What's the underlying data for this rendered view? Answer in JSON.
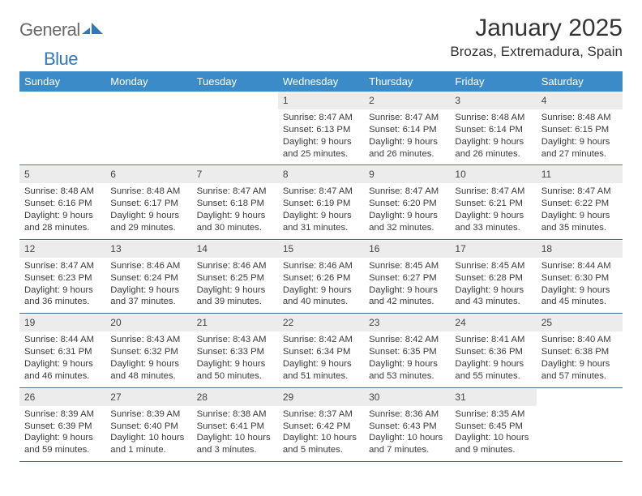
{
  "brand": {
    "part1": "General",
    "part2": "Blue"
  },
  "title": "January 2025",
  "location": "Brozas, Extremadura, Spain",
  "colors": {
    "header_bg": "#3b8bc9",
    "header_text": "#ffffff",
    "daynum_bg": "#ececec",
    "border": "#4a6a85",
    "text": "#3a3a3a"
  },
  "fonts": {
    "title_size": 30,
    "location_size": 17,
    "header_size": 13,
    "cell_size": 11
  },
  "day_labels": [
    "Sunday",
    "Monday",
    "Tuesday",
    "Wednesday",
    "Thursday",
    "Friday",
    "Saturday"
  ],
  "weeks": [
    [
      null,
      null,
      null,
      {
        "n": "1",
        "sr": "Sunrise: 8:47 AM",
        "ss": "Sunset: 6:13 PM",
        "d1": "Daylight: 9 hours",
        "d2": "and 25 minutes."
      },
      {
        "n": "2",
        "sr": "Sunrise: 8:47 AM",
        "ss": "Sunset: 6:14 PM",
        "d1": "Daylight: 9 hours",
        "d2": "and 26 minutes."
      },
      {
        "n": "3",
        "sr": "Sunrise: 8:48 AM",
        "ss": "Sunset: 6:14 PM",
        "d1": "Daylight: 9 hours",
        "d2": "and 26 minutes."
      },
      {
        "n": "4",
        "sr": "Sunrise: 8:48 AM",
        "ss": "Sunset: 6:15 PM",
        "d1": "Daylight: 9 hours",
        "d2": "and 27 minutes."
      }
    ],
    [
      {
        "n": "5",
        "sr": "Sunrise: 8:48 AM",
        "ss": "Sunset: 6:16 PM",
        "d1": "Daylight: 9 hours",
        "d2": "and 28 minutes."
      },
      {
        "n": "6",
        "sr": "Sunrise: 8:48 AM",
        "ss": "Sunset: 6:17 PM",
        "d1": "Daylight: 9 hours",
        "d2": "and 29 minutes."
      },
      {
        "n": "7",
        "sr": "Sunrise: 8:47 AM",
        "ss": "Sunset: 6:18 PM",
        "d1": "Daylight: 9 hours",
        "d2": "and 30 minutes."
      },
      {
        "n": "8",
        "sr": "Sunrise: 8:47 AM",
        "ss": "Sunset: 6:19 PM",
        "d1": "Daylight: 9 hours",
        "d2": "and 31 minutes."
      },
      {
        "n": "9",
        "sr": "Sunrise: 8:47 AM",
        "ss": "Sunset: 6:20 PM",
        "d1": "Daylight: 9 hours",
        "d2": "and 32 minutes."
      },
      {
        "n": "10",
        "sr": "Sunrise: 8:47 AM",
        "ss": "Sunset: 6:21 PM",
        "d1": "Daylight: 9 hours",
        "d2": "and 33 minutes."
      },
      {
        "n": "11",
        "sr": "Sunrise: 8:47 AM",
        "ss": "Sunset: 6:22 PM",
        "d1": "Daylight: 9 hours",
        "d2": "and 35 minutes."
      }
    ],
    [
      {
        "n": "12",
        "sr": "Sunrise: 8:47 AM",
        "ss": "Sunset: 6:23 PM",
        "d1": "Daylight: 9 hours",
        "d2": "and 36 minutes."
      },
      {
        "n": "13",
        "sr": "Sunrise: 8:46 AM",
        "ss": "Sunset: 6:24 PM",
        "d1": "Daylight: 9 hours",
        "d2": "and 37 minutes."
      },
      {
        "n": "14",
        "sr": "Sunrise: 8:46 AM",
        "ss": "Sunset: 6:25 PM",
        "d1": "Daylight: 9 hours",
        "d2": "and 39 minutes."
      },
      {
        "n": "15",
        "sr": "Sunrise: 8:46 AM",
        "ss": "Sunset: 6:26 PM",
        "d1": "Daylight: 9 hours",
        "d2": "and 40 minutes."
      },
      {
        "n": "16",
        "sr": "Sunrise: 8:45 AM",
        "ss": "Sunset: 6:27 PM",
        "d1": "Daylight: 9 hours",
        "d2": "and 42 minutes."
      },
      {
        "n": "17",
        "sr": "Sunrise: 8:45 AM",
        "ss": "Sunset: 6:28 PM",
        "d1": "Daylight: 9 hours",
        "d2": "and 43 minutes."
      },
      {
        "n": "18",
        "sr": "Sunrise: 8:44 AM",
        "ss": "Sunset: 6:30 PM",
        "d1": "Daylight: 9 hours",
        "d2": "and 45 minutes."
      }
    ],
    [
      {
        "n": "19",
        "sr": "Sunrise: 8:44 AM",
        "ss": "Sunset: 6:31 PM",
        "d1": "Daylight: 9 hours",
        "d2": "and 46 minutes."
      },
      {
        "n": "20",
        "sr": "Sunrise: 8:43 AM",
        "ss": "Sunset: 6:32 PM",
        "d1": "Daylight: 9 hours",
        "d2": "and 48 minutes."
      },
      {
        "n": "21",
        "sr": "Sunrise: 8:43 AM",
        "ss": "Sunset: 6:33 PM",
        "d1": "Daylight: 9 hours",
        "d2": "and 50 minutes."
      },
      {
        "n": "22",
        "sr": "Sunrise: 8:42 AM",
        "ss": "Sunset: 6:34 PM",
        "d1": "Daylight: 9 hours",
        "d2": "and 51 minutes."
      },
      {
        "n": "23",
        "sr": "Sunrise: 8:42 AM",
        "ss": "Sunset: 6:35 PM",
        "d1": "Daylight: 9 hours",
        "d2": "and 53 minutes."
      },
      {
        "n": "24",
        "sr": "Sunrise: 8:41 AM",
        "ss": "Sunset: 6:36 PM",
        "d1": "Daylight: 9 hours",
        "d2": "and 55 minutes."
      },
      {
        "n": "25",
        "sr": "Sunrise: 8:40 AM",
        "ss": "Sunset: 6:38 PM",
        "d1": "Daylight: 9 hours",
        "d2": "and 57 minutes."
      }
    ],
    [
      {
        "n": "26",
        "sr": "Sunrise: 8:39 AM",
        "ss": "Sunset: 6:39 PM",
        "d1": "Daylight: 9 hours",
        "d2": "and 59 minutes."
      },
      {
        "n": "27",
        "sr": "Sunrise: 8:39 AM",
        "ss": "Sunset: 6:40 PM",
        "d1": "Daylight: 10 hours",
        "d2": "and 1 minute."
      },
      {
        "n": "28",
        "sr": "Sunrise: 8:38 AM",
        "ss": "Sunset: 6:41 PM",
        "d1": "Daylight: 10 hours",
        "d2": "and 3 minutes."
      },
      {
        "n": "29",
        "sr": "Sunrise: 8:37 AM",
        "ss": "Sunset: 6:42 PM",
        "d1": "Daylight: 10 hours",
        "d2": "and 5 minutes."
      },
      {
        "n": "30",
        "sr": "Sunrise: 8:36 AM",
        "ss": "Sunset: 6:43 PM",
        "d1": "Daylight: 10 hours",
        "d2": "and 7 minutes."
      },
      {
        "n": "31",
        "sr": "Sunrise: 8:35 AM",
        "ss": "Sunset: 6:45 PM",
        "d1": "Daylight: 10 hours",
        "d2": "and 9 minutes."
      },
      null
    ]
  ]
}
